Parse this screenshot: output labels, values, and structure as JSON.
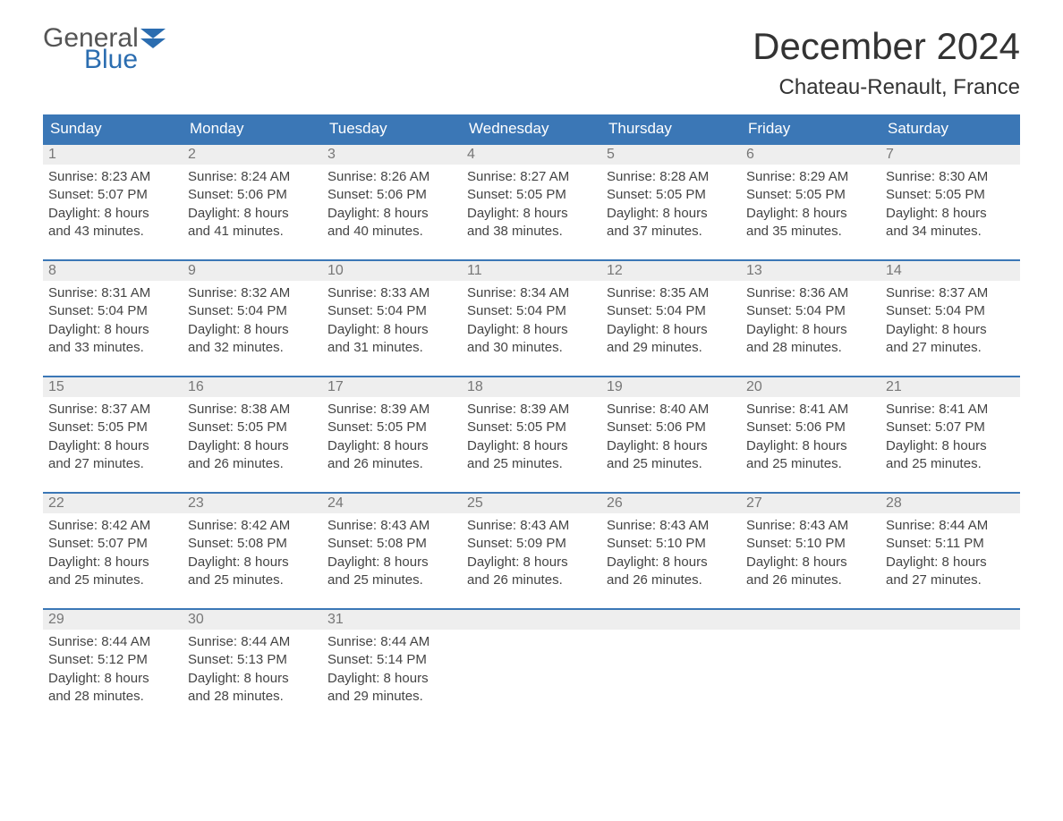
{
  "logo": {
    "word1": "General",
    "word2": "Blue",
    "accent_color": "#2b6db0"
  },
  "title": "December 2024",
  "location": "Chateau-Renault, France",
  "colors": {
    "header_bg": "#3b77b6",
    "header_text": "#ffffff",
    "daynum_bg": "#eeeeee",
    "daynum_text": "#777777",
    "body_text": "#444444",
    "week_border": "#3b77b6",
    "page_bg": "#ffffff"
  },
  "typography": {
    "title_fontsize": 42,
    "location_fontsize": 24,
    "dow_fontsize": 17,
    "daynum_fontsize": 16,
    "content_fontsize": 15
  },
  "daysOfWeek": [
    "Sunday",
    "Monday",
    "Tuesday",
    "Wednesday",
    "Thursday",
    "Friday",
    "Saturday"
  ],
  "labels": {
    "sunrise": "Sunrise:",
    "sunset": "Sunset:",
    "daylight": "Daylight:"
  },
  "weeks": [
    [
      {
        "n": "1",
        "sunrise": "8:23 AM",
        "sunset": "5:07 PM",
        "dl1": "8 hours",
        "dl2": "and 43 minutes."
      },
      {
        "n": "2",
        "sunrise": "8:24 AM",
        "sunset": "5:06 PM",
        "dl1": "8 hours",
        "dl2": "and 41 minutes."
      },
      {
        "n": "3",
        "sunrise": "8:26 AM",
        "sunset": "5:06 PM",
        "dl1": "8 hours",
        "dl2": "and 40 minutes."
      },
      {
        "n": "4",
        "sunrise": "8:27 AM",
        "sunset": "5:05 PM",
        "dl1": "8 hours",
        "dl2": "and 38 minutes."
      },
      {
        "n": "5",
        "sunrise": "8:28 AM",
        "sunset": "5:05 PM",
        "dl1": "8 hours",
        "dl2": "and 37 minutes."
      },
      {
        "n": "6",
        "sunrise": "8:29 AM",
        "sunset": "5:05 PM",
        "dl1": "8 hours",
        "dl2": "and 35 minutes."
      },
      {
        "n": "7",
        "sunrise": "8:30 AM",
        "sunset": "5:05 PM",
        "dl1": "8 hours",
        "dl2": "and 34 minutes."
      }
    ],
    [
      {
        "n": "8",
        "sunrise": "8:31 AM",
        "sunset": "5:04 PM",
        "dl1": "8 hours",
        "dl2": "and 33 minutes."
      },
      {
        "n": "9",
        "sunrise": "8:32 AM",
        "sunset": "5:04 PM",
        "dl1": "8 hours",
        "dl2": "and 32 minutes."
      },
      {
        "n": "10",
        "sunrise": "8:33 AM",
        "sunset": "5:04 PM",
        "dl1": "8 hours",
        "dl2": "and 31 minutes."
      },
      {
        "n": "11",
        "sunrise": "8:34 AM",
        "sunset": "5:04 PM",
        "dl1": "8 hours",
        "dl2": "and 30 minutes."
      },
      {
        "n": "12",
        "sunrise": "8:35 AM",
        "sunset": "5:04 PM",
        "dl1": "8 hours",
        "dl2": "and 29 minutes."
      },
      {
        "n": "13",
        "sunrise": "8:36 AM",
        "sunset": "5:04 PM",
        "dl1": "8 hours",
        "dl2": "and 28 minutes."
      },
      {
        "n": "14",
        "sunrise": "8:37 AM",
        "sunset": "5:04 PM",
        "dl1": "8 hours",
        "dl2": "and 27 minutes."
      }
    ],
    [
      {
        "n": "15",
        "sunrise": "8:37 AM",
        "sunset": "5:05 PM",
        "dl1": "8 hours",
        "dl2": "and 27 minutes."
      },
      {
        "n": "16",
        "sunrise": "8:38 AM",
        "sunset": "5:05 PM",
        "dl1": "8 hours",
        "dl2": "and 26 minutes."
      },
      {
        "n": "17",
        "sunrise": "8:39 AM",
        "sunset": "5:05 PM",
        "dl1": "8 hours",
        "dl2": "and 26 minutes."
      },
      {
        "n": "18",
        "sunrise": "8:39 AM",
        "sunset": "5:05 PM",
        "dl1": "8 hours",
        "dl2": "and 25 minutes."
      },
      {
        "n": "19",
        "sunrise": "8:40 AM",
        "sunset": "5:06 PM",
        "dl1": "8 hours",
        "dl2": "and 25 minutes."
      },
      {
        "n": "20",
        "sunrise": "8:41 AM",
        "sunset": "5:06 PM",
        "dl1": "8 hours",
        "dl2": "and 25 minutes."
      },
      {
        "n": "21",
        "sunrise": "8:41 AM",
        "sunset": "5:07 PM",
        "dl1": "8 hours",
        "dl2": "and 25 minutes."
      }
    ],
    [
      {
        "n": "22",
        "sunrise": "8:42 AM",
        "sunset": "5:07 PM",
        "dl1": "8 hours",
        "dl2": "and 25 minutes."
      },
      {
        "n": "23",
        "sunrise": "8:42 AM",
        "sunset": "5:08 PM",
        "dl1": "8 hours",
        "dl2": "and 25 minutes."
      },
      {
        "n": "24",
        "sunrise": "8:43 AM",
        "sunset": "5:08 PM",
        "dl1": "8 hours",
        "dl2": "and 25 minutes."
      },
      {
        "n": "25",
        "sunrise": "8:43 AM",
        "sunset": "5:09 PM",
        "dl1": "8 hours",
        "dl2": "and 26 minutes."
      },
      {
        "n": "26",
        "sunrise": "8:43 AM",
        "sunset": "5:10 PM",
        "dl1": "8 hours",
        "dl2": "and 26 minutes."
      },
      {
        "n": "27",
        "sunrise": "8:43 AM",
        "sunset": "5:10 PM",
        "dl1": "8 hours",
        "dl2": "and 26 minutes."
      },
      {
        "n": "28",
        "sunrise": "8:44 AM",
        "sunset": "5:11 PM",
        "dl1": "8 hours",
        "dl2": "and 27 minutes."
      }
    ],
    [
      {
        "n": "29",
        "sunrise": "8:44 AM",
        "sunset": "5:12 PM",
        "dl1": "8 hours",
        "dl2": "and 28 minutes."
      },
      {
        "n": "30",
        "sunrise": "8:44 AM",
        "sunset": "5:13 PM",
        "dl1": "8 hours",
        "dl2": "and 28 minutes."
      },
      {
        "n": "31",
        "sunrise": "8:44 AM",
        "sunset": "5:14 PM",
        "dl1": "8 hours",
        "dl2": "and 29 minutes."
      },
      {
        "empty": true
      },
      {
        "empty": true
      },
      {
        "empty": true
      },
      {
        "empty": true
      }
    ]
  ]
}
